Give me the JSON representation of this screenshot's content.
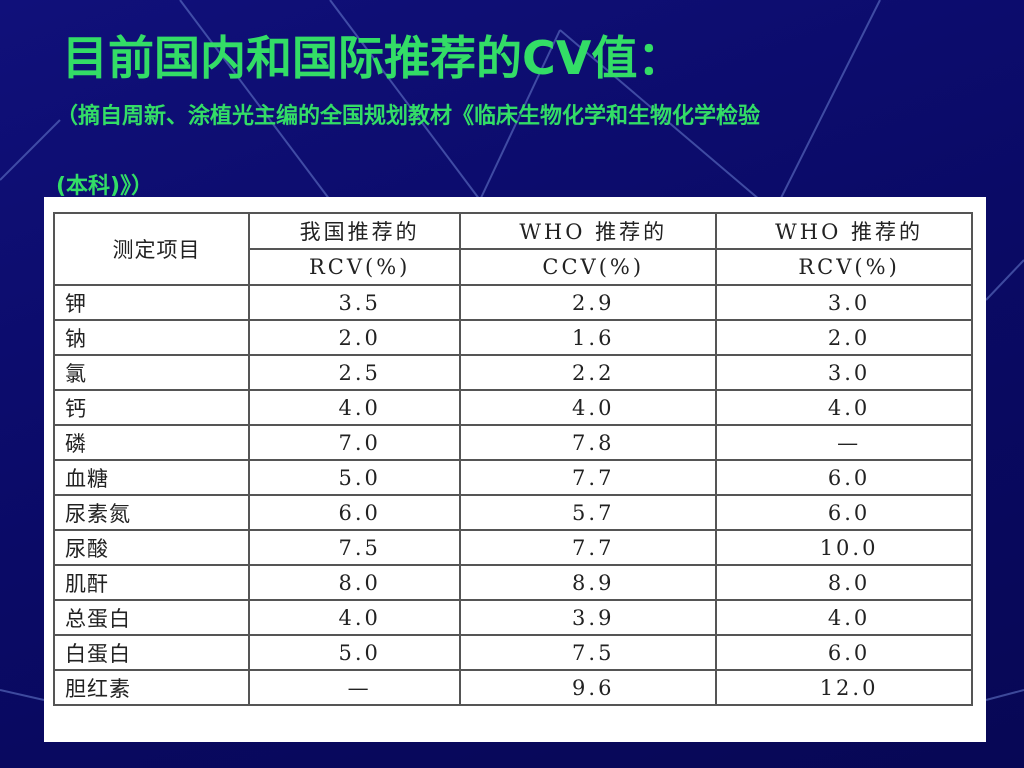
{
  "title": "目前国内和国际推荐的CV值：",
  "subtitle_lines": [
    "（摘自周新、涂植光主编的全国规划教材《临床生物化学和生物化学检验",
    "(本科)》）"
  ],
  "table": {
    "header": [
      [
        "测定项目",
        "我国推荐的",
        "WHO 推荐的",
        "WHO 推荐的"
      ],
      [
        "RCV(%)",
        "CCV(%)",
        "RCV(%)"
      ]
    ],
    "rows": [
      [
        "钾",
        "3.5",
        "2.9",
        "3.0"
      ],
      [
        "钠",
        "2.0",
        "1.6",
        "2.0"
      ],
      [
        "氯",
        "2.5",
        "2.2",
        "3.0"
      ],
      [
        "钙",
        "4.0",
        "4.0",
        "4.0"
      ],
      [
        "磷",
        "7.0",
        "7.8",
        "—"
      ],
      [
        "血糖",
        "5.0",
        "7.7",
        "6.0"
      ],
      [
        "尿素氮",
        "6.0",
        "5.7",
        "6.0"
      ],
      [
        "尿酸",
        "7.5",
        "7.7",
        "10.0"
      ],
      [
        "肌酐",
        "8.0",
        "8.9",
        "8.0"
      ],
      [
        "总蛋白",
        "4.0",
        "3.9",
        "4.0"
      ],
      [
        "白蛋白",
        "5.0",
        "7.5",
        "6.0"
      ],
      [
        "胆红素",
        "—",
        "9.6",
        "12.0"
      ]
    ]
  }
}
